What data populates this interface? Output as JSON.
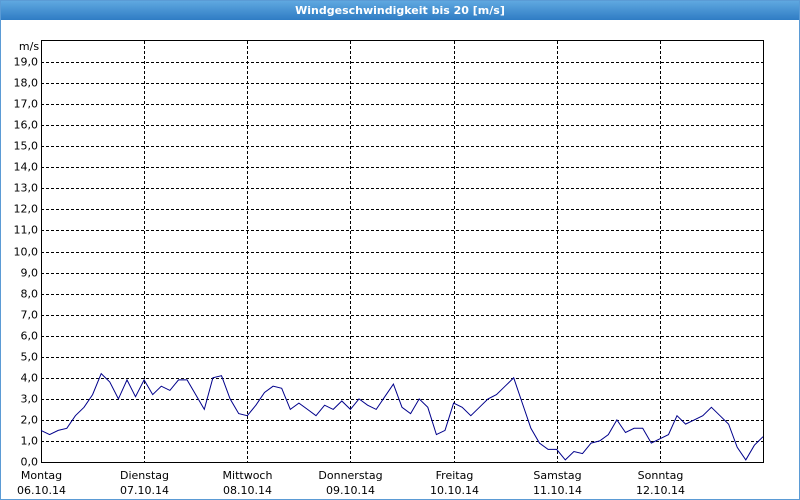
{
  "chart_data": {
    "type": "line",
    "title": "Windgeschwindigkeit bis 20 [m/s]",
    "y_label": "m/s",
    "x": [
      0,
      2,
      4,
      6,
      8,
      10,
      12,
      14,
      16,
      18,
      20,
      22,
      24,
      26,
      28,
      30,
      32,
      34,
      36,
      38,
      40,
      42,
      44,
      46,
      48,
      50,
      52,
      54,
      56,
      58,
      60,
      62,
      64,
      66,
      68,
      70,
      72,
      74,
      76,
      78,
      80,
      82,
      84,
      86,
      88,
      90,
      92,
      94,
      96,
      98,
      100,
      102,
      104,
      106,
      108,
      110,
      112,
      114,
      116,
      118,
      120,
      122,
      124,
      126,
      128,
      130,
      132,
      134,
      136,
      138,
      140,
      142,
      144,
      146,
      148,
      150,
      152,
      154,
      156,
      158,
      160,
      162,
      164,
      166,
      168
    ],
    "values": [
      1.5,
      1.3,
      1.5,
      1.6,
      2.2,
      2.6,
      3.2,
      4.2,
      3.8,
      3.0,
      3.9,
      3.1,
      3.9,
      3.2,
      3.6,
      3.4,
      3.9,
      3.9,
      3.2,
      2.5,
      4.0,
      4.1,
      3.0,
      2.3,
      2.2,
      2.7,
      3.3,
      3.6,
      3.5,
      2.5,
      2.8,
      2.5,
      2.2,
      2.7,
      2.5,
      2.9,
      2.5,
      3.0,
      2.7,
      2.5,
      3.1,
      3.7,
      2.6,
      2.3,
      3.0,
      2.6,
      1.3,
      1.5,
      2.8,
      2.6,
      2.2,
      2.6,
      3.0,
      3.2,
      3.6,
      4.0,
      2.8,
      1.6,
      0.9,
      0.6,
      0.6,
      0.1,
      0.5,
      0.4,
      0.9,
      1.0,
      1.3,
      2.0,
      1.4,
      1.6,
      1.6,
      0.9,
      1.1,
      1.3,
      2.2,
      1.8,
      2.0,
      2.2,
      2.6,
      2.2,
      1.8,
      0.7,
      0.1,
      0.8,
      1.2
    ],
    "color": "#00008b",
    "xlim": [
      0,
      168
    ],
    "xticks": [
      {
        "value": 0,
        "label": "Montag\n06.10.14"
      },
      {
        "value": 24,
        "label": "Dienstag\n07.10.14"
      },
      {
        "value": 48,
        "label": "Mittwoch\n08.10.14"
      },
      {
        "value": 72,
        "label": "Donnerstag\n09.10.14"
      },
      {
        "value": 96,
        "label": "Freitag\n10.10.14"
      },
      {
        "value": 120,
        "label": "Samstag\n11.10.14"
      },
      {
        "value": 144,
        "label": "Sonntag\n12.10.14"
      }
    ],
    "ylim": [
      0,
      20
    ],
    "yticks": [
      {
        "value": 0,
        "label": "0,0"
      },
      {
        "value": 1,
        "label": "1,0"
      },
      {
        "value": 2,
        "label": "2,0"
      },
      {
        "value": 3,
        "label": "3,0"
      },
      {
        "value": 4,
        "label": "4,0"
      },
      {
        "value": 5,
        "label": "5,0"
      },
      {
        "value": 6,
        "label": "6,0"
      },
      {
        "value": 7,
        "label": "7,0"
      },
      {
        "value": 8,
        "label": "8,0"
      },
      {
        "value": 9,
        "label": "9,0"
      },
      {
        "value": 10,
        "label": "10,0"
      },
      {
        "value": 11,
        "label": "11,0"
      },
      {
        "value": 12,
        "label": "12,0"
      },
      {
        "value": 13,
        "label": "13,0"
      },
      {
        "value": 14,
        "label": "14,0"
      },
      {
        "value": 15,
        "label": "15,0"
      },
      {
        "value": 16,
        "label": "16,0"
      },
      {
        "value": 17,
        "label": "17,0"
      },
      {
        "value": 18,
        "label": "18,0"
      },
      {
        "value": 19,
        "label": "19,0"
      }
    ],
    "grid": true
  }
}
